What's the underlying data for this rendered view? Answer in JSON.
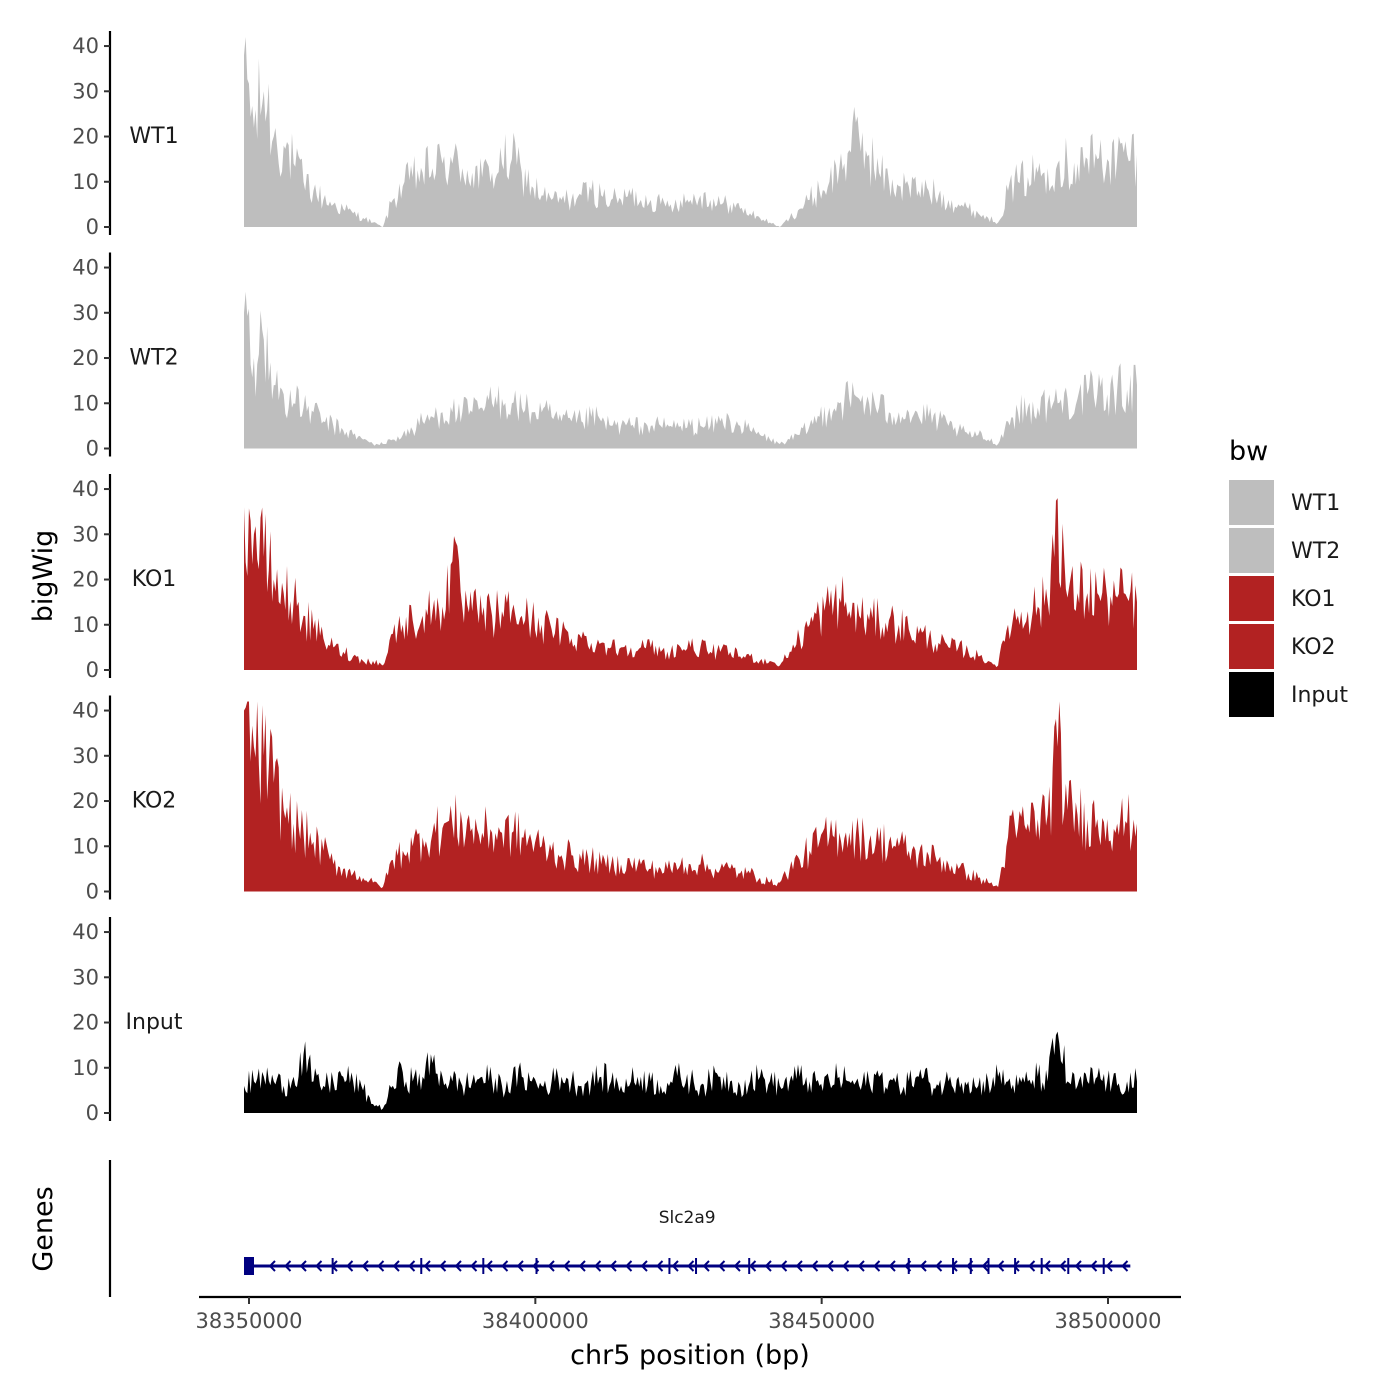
{
  "chart_data": {
    "type": "area",
    "chromosome": "chr5",
    "x_range": [
      38350000,
      38505000
    ],
    "xlabel": "chr5 position (bp)",
    "x_ticks": [
      38350000,
      38400000,
      38450000,
      38500000
    ],
    "x_tick_labels": [
      "38350000",
      "38400000",
      "38450000",
      "38500000"
    ],
    "ylabel": "bigWig",
    "genes_label": "Genes",
    "ylim": [
      0,
      42
    ],
    "y_ticks": [
      0,
      10,
      20,
      30,
      40
    ],
    "y_tick_labels": [
      "0",
      "10",
      "20",
      "30",
      "40"
    ],
    "legend": {
      "title": "bw",
      "items": [
        {
          "label": "WT1",
          "color": "#bebebe"
        },
        {
          "label": "WT2",
          "color": "#bebebe"
        },
        {
          "label": "KO1",
          "color": "#b22222"
        },
        {
          "label": "KO2",
          "color": "#b22222"
        },
        {
          "label": "Input",
          "color": "#000000"
        }
      ]
    },
    "series": [
      {
        "name": "WT1",
        "color": "#bebebe",
        "values": [
          38,
          22,
          30,
          20,
          18,
          14,
          10,
          8,
          6,
          5,
          4,
          3,
          2,
          1,
          0,
          6,
          9,
          11,
          12,
          13,
          14,
          14,
          13,
          12,
          11,
          12,
          14,
          15,
          12,
          9,
          7,
          6,
          6,
          6,
          7,
          8,
          7,
          6,
          6,
          7,
          6,
          6,
          5,
          5,
          6,
          6,
          7,
          6,
          5,
          5,
          4,
          3,
          2,
          1,
          0,
          2,
          4,
          6,
          8,
          10,
          13,
          17,
          20,
          16,
          12,
          10,
          9,
          9,
          8,
          8,
          7,
          6,
          5,
          4,
          3,
          2,
          1,
          8,
          10,
          11,
          12,
          13,
          14,
          14,
          14,
          15,
          15,
          15,
          15,
          16,
          16
        ]
      },
      {
        "name": "WT2",
        "color": "#bebebe",
        "values": [
          30,
          20,
          24,
          14,
          12,
          10,
          9,
          8,
          6,
          5,
          4,
          3,
          2,
          1,
          1,
          2,
          3,
          4,
          6,
          7,
          8,
          8,
          8,
          8,
          9,
          10,
          11,
          10,
          9,
          8,
          8,
          7,
          6,
          6,
          6,
          7,
          6,
          5,
          5,
          5,
          5,
          5,
          5,
          5,
          5,
          5,
          5,
          5,
          6,
          6,
          5,
          4,
          3,
          2,
          1,
          2,
          3,
          5,
          7,
          9,
          10,
          11,
          11,
          10,
          9,
          8,
          8,
          8,
          7,
          7,
          6,
          5,
          4,
          3,
          3,
          2,
          1,
          6,
          8,
          9,
          9,
          10,
          10,
          11,
          11,
          12,
          12,
          12,
          13,
          13,
          14
        ]
      },
      {
        "name": "KO1",
        "color": "#b22222",
        "values": [
          36,
          30,
          25,
          20,
          17,
          15,
          12,
          9,
          7,
          5,
          4,
          3,
          2,
          2,
          1,
          8,
          10,
          11,
          12,
          13,
          14,
          24,
          14,
          13,
          12,
          12,
          13,
          13,
          12,
          11,
          10,
          9,
          8,
          7,
          7,
          6,
          6,
          5,
          5,
          5,
          5,
          5,
          4,
          4,
          5,
          5,
          5,
          4,
          4,
          4,
          3,
          3,
          2,
          2,
          1,
          4,
          7,
          10,
          12,
          14,
          16,
          13,
          12,
          11,
          11,
          11,
          10,
          9,
          8,
          7,
          6,
          5,
          5,
          4,
          3,
          2,
          1,
          10,
          12,
          13,
          14,
          15,
          38,
          16,
          17,
          17,
          17,
          16,
          16,
          16,
          15
        ]
      },
      {
        "name": "KO2",
        "color": "#b22222",
        "values": [
          40,
          32,
          30,
          24,
          18,
          15,
          13,
          11,
          9,
          6,
          5,
          4,
          3,
          2,
          1,
          7,
          9,
          10,
          12,
          13,
          14,
          15,
          15,
          14,
          13,
          13,
          13,
          13,
          12,
          11,
          10,
          9,
          8,
          8,
          7,
          7,
          6,
          6,
          6,
          6,
          6,
          5,
          5,
          5,
          6,
          6,
          6,
          5,
          5,
          5,
          4,
          4,
          3,
          2,
          2,
          5,
          7,
          9,
          11,
          12,
          13,
          13,
          12,
          11,
          11,
          11,
          10,
          9,
          8,
          8,
          7,
          6,
          5,
          4,
          3,
          2,
          1,
          12,
          14,
          15,
          16,
          17,
          32,
          18,
          17,
          16,
          16,
          16,
          15,
          15,
          15
        ]
      },
      {
        "name": "Input",
        "color": "#000000",
        "values": [
          6,
          7,
          8,
          7,
          6,
          8,
          13,
          7,
          6,
          7,
          8,
          7,
          5,
          2,
          1,
          6,
          9,
          7,
          8,
          11,
          8,
          7,
          6,
          7,
          8,
          7,
          6,
          7,
          8,
          7,
          6,
          7,
          8,
          7,
          6,
          7,
          8,
          7,
          6,
          7,
          8,
          7,
          6,
          7,
          8,
          7,
          6,
          7,
          8,
          7,
          6,
          7,
          8,
          7,
          6,
          7,
          8,
          7,
          6,
          7,
          8,
          7,
          6,
          7,
          8,
          7,
          6,
          7,
          8,
          7,
          6,
          7,
          8,
          7,
          6,
          7,
          8,
          7,
          6,
          7,
          8,
          7,
          18,
          7,
          6,
          7,
          8,
          7,
          6,
          7,
          7
        ]
      }
    ],
    "genes": [
      {
        "name": "Slc2a9",
        "start": 38350000,
        "end": 38502500,
        "strand": "-",
        "color": "#000080"
      }
    ]
  }
}
